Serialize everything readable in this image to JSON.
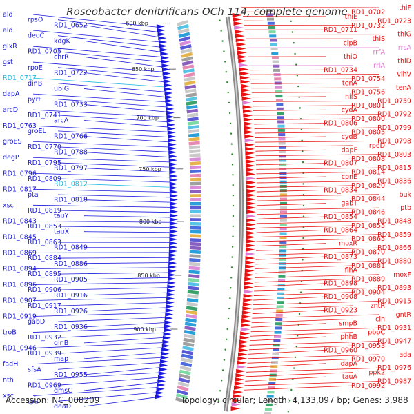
{
  "title": "Roseobacter denitrificans OCh 114, complete genome",
  "accession": "Accession: NC_008209",
  "topology": "Topology: circular; Length: 4,133,097 bp; Genes: 3,988",
  "colors": {
    "left_strand": "#1a1adc",
    "right_strand": "#e81010",
    "rrna": "#e07ad0",
    "trna": "#22b8e0",
    "backbone": "#8a8a8a",
    "tick": "#2a8a2a"
  },
  "ticks": [
    "600 kbp",
    "650 kbp",
    "700 kbp",
    "750 kbp",
    "800 kbp",
    "850 kbp",
    "900 kbp"
  ],
  "left_labels": [
    "ald",
    "rpsO",
    "RD1_0652",
    "ald",
    "deoC",
    "kdgK",
    "glxR",
    "RD1_0705",
    "chrR",
    "gst",
    "rpoE",
    "RD1_0722",
    "RD1_0717",
    "dinB",
    "ubiG",
    "dapA",
    "pyrF",
    "RD1_0733",
    "arcD",
    "RD1_0741",
    "arcA",
    "RD1_0763",
    "groEL",
    "RD1_0766",
    "groES",
    "RD1_0770",
    "RD1_0788",
    "degP",
    "RD1_0795",
    "RD1_0797",
    "RD1_0796",
    "RD1_0809",
    "RD1_0812",
    "RD1_0817",
    "pta",
    "RD1_0818",
    "xsc",
    "RD1_0819",
    "tauY",
    "RD1_0843",
    "RD1_0853",
    "tauX",
    "RD1_0845",
    "RD1_0863",
    "RD1_0849",
    "RD1_0869",
    "RD1_0884",
    "RD1_0886",
    "RD1_0894",
    "RD1_0895",
    "RD1_0905",
    "RD1_0896",
    "RD1_0906",
    "RD1_0916",
    "RD1_0907",
    "RD1_0917",
    "RD1_0926",
    "RD1_0919",
    "gabD",
    "RD1_0936",
    "troB",
    "RD1_0932",
    "glnB",
    "RD1_0946",
    "RD1_0939",
    "map",
    "fadH",
    "sfsA",
    "RD1_0955",
    "nth",
    "RD1_0969",
    "dmsC",
    "xsc",
    "tpa",
    "deaD"
  ],
  "right_labels": [
    "thiF",
    "RD1_0702",
    "thiE",
    "RD1_0723",
    "RD1_0732",
    "RD1_0711",
    "thiG",
    "thiS",
    "clpB",
    "rrsA",
    "rrfA",
    "thiO",
    "thiD",
    "rrlA",
    "RD1_0734",
    "vihV",
    "RD1_0754",
    "tenA",
    "tenA",
    "RD1_0756",
    "nifS",
    "RD1_0759",
    "RD1_0801",
    "cydA",
    "RD1_0792",
    "RD1_0800",
    "RD1_0806",
    "RD1_0799",
    "RD1_0805",
    "cydB",
    "RD1_0798",
    "rpoD",
    "dapF",
    "RD1_0803",
    "RD1_0808",
    "RD1_0807",
    "RD1_0815",
    "RD1_0814",
    "cpnE",
    "RD1_0836",
    "RD1_0820",
    "RD1_0834",
    "buk",
    "RD1_0844",
    "gabT",
    "ptb",
    "RD1_0846",
    "RD1_0854",
    "RD1_0848",
    "RD1_0855",
    "RD1_0864",
    "RD1_0859",
    "RD1_0865",
    "moxR",
    "RD1_0866",
    "RD1_0870",
    "RD1_0873",
    "RD1_0880",
    "RD1_0881",
    "flhA",
    "moxF",
    "RD1_0889",
    "RD1_0898",
    "RD1_0893",
    "RD1_0904",
    "RD1_0908",
    "RD1_0915",
    "zntR",
    "RD1_0923",
    "gntR",
    "cln",
    "smpB",
    "RD1_0931",
    "pbpC",
    "phhB",
    "RD1_0947",
    "RD1_0953",
    "RD1_0960",
    "ada",
    "RD1_0970",
    "dapA",
    "RD1_0976",
    "ppk2",
    "tauA",
    "RD1_0987",
    "RD1_0992"
  ]
}
